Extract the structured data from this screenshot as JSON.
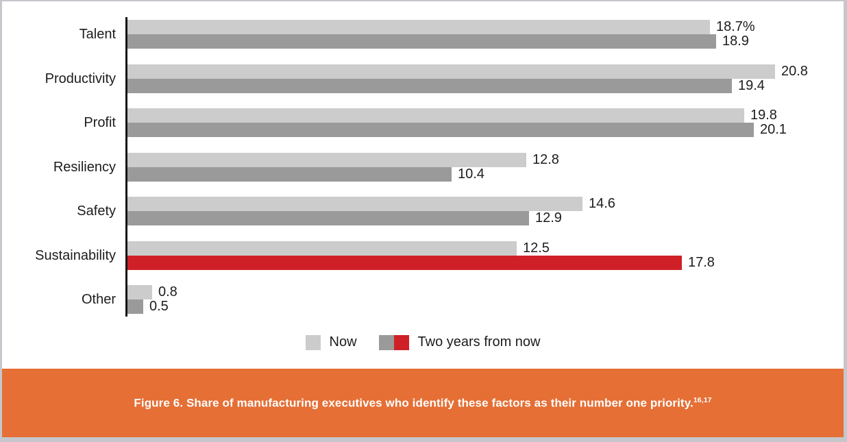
{
  "figure": {
    "caption": "Figure 6. Share of manufacturing executives who identify these factors as their number one priority.",
    "caption_superscript": "16,17"
  },
  "legend": [
    {
      "label": "Now",
      "swatch": "light-gray-square"
    },
    {
      "label": "Two years from now",
      "swatch": "gray-and-red-squares"
    }
  ],
  "colors": {
    "now_bar": "#cccccc",
    "future_bar": "#9a9a9a",
    "highlight_bar": "#cf2027",
    "caption_band": "#e56f35",
    "axis": "#141414",
    "caption_text": "#ffffff"
  },
  "chart_data": {
    "type": "bar",
    "orientation": "horizontal",
    "title": "",
    "xlabel": "",
    "ylabel": "",
    "categories": [
      "Talent",
      "Productivity",
      "Profit",
      "Resiliency",
      "Safety",
      "Sustainability",
      "Other"
    ],
    "series": [
      {
        "name": "Now",
        "values": [
          18.7,
          20.8,
          19.8,
          12.8,
          14.6,
          12.5,
          0.8
        ],
        "labels": [
          "18.7%",
          "20.8",
          "19.8",
          "12.8",
          "14.6",
          "12.5",
          "0.8"
        ]
      },
      {
        "name": "Two years from now",
        "values": [
          18.9,
          19.4,
          20.1,
          10.4,
          12.9,
          17.8,
          0.5
        ],
        "labels": [
          "18.9",
          "19.4",
          "20.1",
          "10.4",
          "12.9",
          "17.8",
          "0.5"
        ],
        "highlight_index": 5
      }
    ],
    "xlim": [
      0,
      22
    ],
    "grid": false,
    "legend_position": "bottom",
    "data_labels": true
  }
}
